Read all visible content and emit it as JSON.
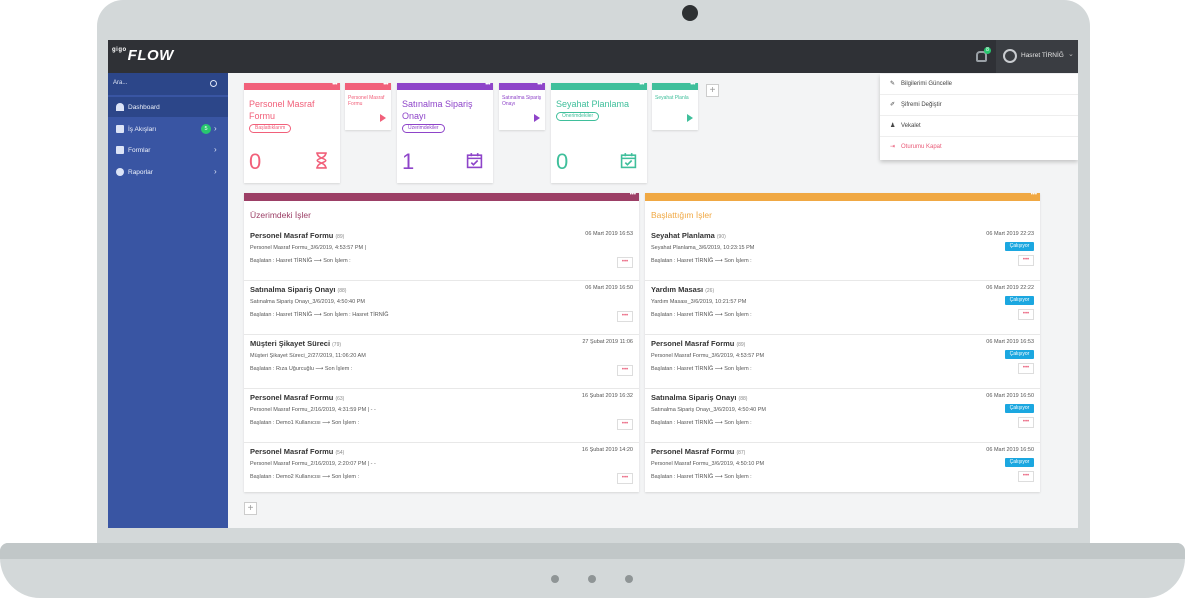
{
  "app": {
    "logo_prefix": "gigo",
    "logo_text": "FLOW"
  },
  "header": {
    "notification_count": "8",
    "user_name": "Hasret TİRNİĞ",
    "caret": "⌄"
  },
  "user_menu": [
    {
      "icon": "✎",
      "label": "Bilgilerimi Güncelle"
    },
    {
      "icon": "✐",
      "label": "Şifremi Değiştir"
    },
    {
      "icon": "♟",
      "label": "Vekalet"
    },
    {
      "icon": "⇥",
      "label": "Oturumu Kapat"
    }
  ],
  "sidebar": {
    "search_placeholder": "Ara...",
    "items": [
      {
        "label": "Dashboard"
      },
      {
        "label": "İş Akışları",
        "badge": "5",
        "chevron": "›"
      },
      {
        "label": "Formlar",
        "chevron": "›"
      },
      {
        "label": "Raporlar",
        "chevron": "›"
      }
    ]
  },
  "cards": [
    {
      "title": "Personel Masraf Formu",
      "badge": "Başlattıklarım",
      "count": "0",
      "color": "#f1607a"
    },
    {
      "title": "Satınalma Sipariş Onayı",
      "badge": "Üzerimdekiler",
      "count": "1",
      "color": "#8e44c9"
    },
    {
      "title": "Seyahat Planlama",
      "badge": "Önerimdekiler",
      "count": "0",
      "color": "#3fbf9b"
    }
  ],
  "mini_cards": [
    {
      "title": "Personel Masraf Formu",
      "color": "#f1607a"
    },
    {
      "title": "Satınalma Sipariş Onayı",
      "color": "#8e44c9"
    },
    {
      "title": "Seyahat Planla",
      "color": "#3fbf9b"
    }
  ],
  "add_label": "+",
  "more_label": "•••",
  "left_panel": {
    "title": "Üzerimdeki İşler",
    "color": "#9c3f66",
    "rows": [
      {
        "title": "Personel Masraf Formu",
        "id": "(89)",
        "date": "06 Mart 2019 16:53",
        "sub": "Personel Masraf Formu_3/6/2019, 4:53:57 PM |",
        "meta": "Başlatan : Hasret TİRNİĞ   ⟶   Son İşlem :"
      },
      {
        "title": "Satınalma Sipariş Onayı",
        "id": "(88)",
        "date": "06 Mart 2019 16:50",
        "sub": "Satınalma Sipariş Onayı_3/6/2019, 4:50:40 PM",
        "meta": "Başlatan : Hasret TİRNİĞ   ⟶   Son İşlem : Hasret TİRNİĞ"
      },
      {
        "title": "Müşteri Şikayet Süreci",
        "id": "(79)",
        "date": "27 Şubat 2019 11:06",
        "sub": "Müşteri Şikayet Süreci_2/27/2019, 11:06:20 AM",
        "meta": "Başlatan : Rıza Uğurcuğlu   ⟶   Son İşlem :"
      },
      {
        "title": "Personel Masraf Formu",
        "id": "(63)",
        "date": "16 Şubat 2019 16:32",
        "sub": "Personel Masraf Formu_2/16/2019, 4:31:59 PM | - -",
        "meta": "Başlatan : Demo1 Kullanıcısı   ⟶   Son İşlem :"
      },
      {
        "title": "Personel Masraf Formu",
        "id": "(54)",
        "date": "16 Şubat 2019 14:20",
        "sub": "Personel Masraf Formu_2/16/2019, 2:20:07 PM | - -",
        "meta": "Başlatan : Demo2 Kullanıcısı   ⟶   Son İşlem :"
      }
    ]
  },
  "right_panel": {
    "title": "Başlattığım İşler",
    "color": "#f0a843",
    "status_label": "Çalışıyor",
    "rows": [
      {
        "title": "Seyahat Planlama",
        "id": "(90)",
        "date": "06 Mart 2019 22:23",
        "sub": "Seyahat Planlama_3/6/2019, 10:23:15 PM",
        "meta": "Başlatan : Hasret TİRNİĞ   ⟶   Son İşlem :"
      },
      {
        "title": "Yardım Masası",
        "id": "(26)",
        "date": "06 Mart 2019 22:22",
        "sub": "Yardım Masası_3/6/2019, 10:21:57 PM",
        "meta": "Başlatan : Hasret TİRNİĞ   ⟶   Son İşlem :"
      },
      {
        "title": "Personel Masraf Formu",
        "id": "(89)",
        "date": "06 Mart 2019 16:53",
        "sub": "Personel Masraf Formu_3/6/2019, 4:53:57 PM",
        "meta": "Başlatan : Hasret TİRNİĞ   ⟶   Son İşlem :"
      },
      {
        "title": "Satınalma Sipariş Onayı",
        "id": "(88)",
        "date": "06 Mart 2019 16:50",
        "sub": "Satınalma Sipariş Onayı_3/6/2019, 4:50:40 PM",
        "meta": "Başlatan : Hasret TİRNİĞ   ⟶   Son İşlem :"
      },
      {
        "title": "Personel Masraf Formu",
        "id": "(87)",
        "date": "06 Mart 2019 16:50",
        "sub": "Personel Masraf Formu_3/6/2019, 4:50:10 PM",
        "meta": "Başlatan : Hasret TİRNİĞ   ⟶   Son İşlem :"
      }
    ]
  }
}
